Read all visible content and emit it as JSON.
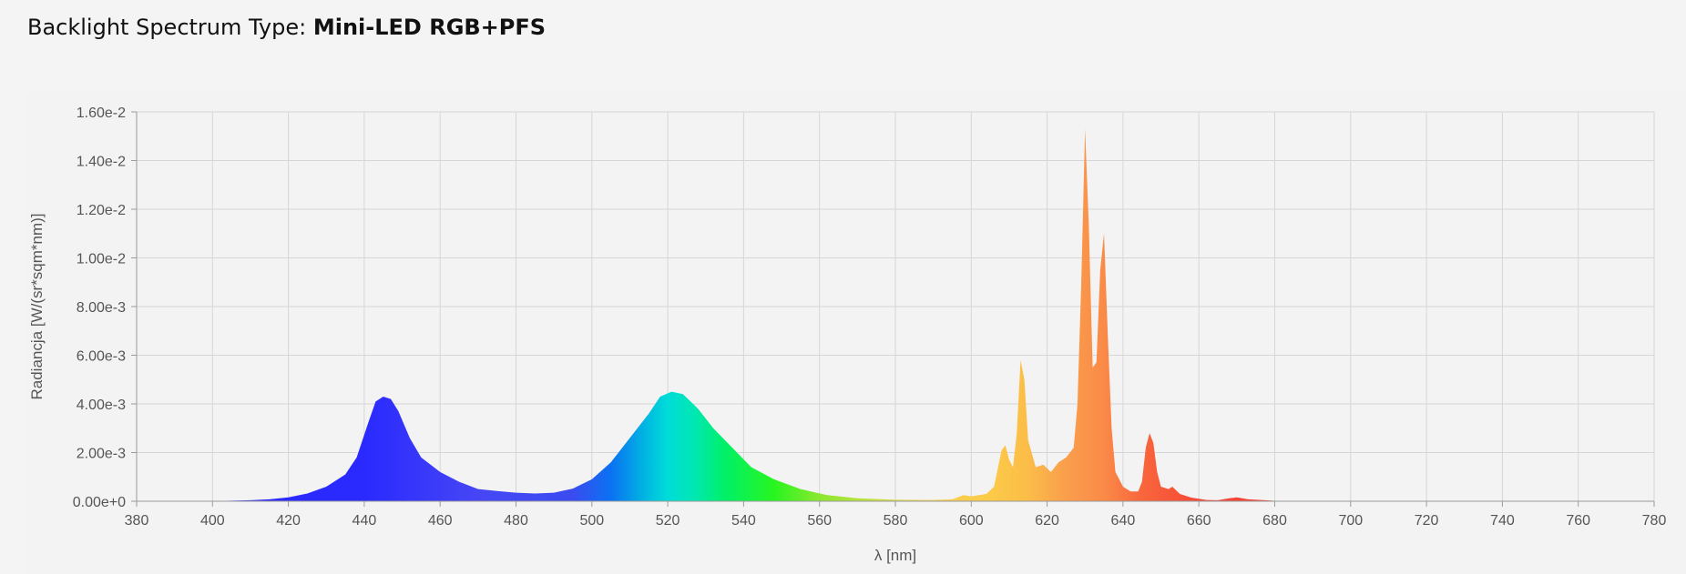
{
  "header": {
    "label": "Backlight Spectrum Type: ",
    "value": "Mini-LED RGB+PFS"
  },
  "chart_data": {
    "type": "area",
    "xlabel": "λ [nm]",
    "ylabel": "Radiancja [W/(sr*sqm*nm)]",
    "xlim": [
      380,
      780
    ],
    "ylim": [
      0,
      0.016
    ],
    "grid": true,
    "x_ticks": [
      "380",
      "400",
      "420",
      "440",
      "460",
      "480",
      "500",
      "520",
      "540",
      "560",
      "580",
      "600",
      "620",
      "640",
      "660",
      "680",
      "700",
      "720",
      "740",
      "760",
      "780"
    ],
    "y_ticks": [
      "0.00e+0",
      "2.00e-3",
      "4.00e-3",
      "6.00e-3",
      "8.00e-3",
      "1.00e-2",
      "1.20e-2",
      "1.40e-2",
      "1.60e-2"
    ],
    "fill": "wavelength-spectrum-gradient",
    "series": [
      {
        "points": [
          [
            380,
            0
          ],
          [
            400,
            1e-05
          ],
          [
            410,
            4e-05
          ],
          [
            415,
            8e-05
          ],
          [
            420,
            0.00016
          ],
          [
            425,
            0.00032
          ],
          [
            430,
            0.0006
          ],
          [
            435,
            0.0011
          ],
          [
            438,
            0.0018
          ],
          [
            441,
            0.0032
          ],
          [
            443,
            0.0041
          ],
          [
            445,
            0.0043
          ],
          [
            447,
            0.0042
          ],
          [
            449,
            0.0037
          ],
          [
            452,
            0.0026
          ],
          [
            455,
            0.0018
          ],
          [
            460,
            0.0012
          ],
          [
            465,
            0.0008
          ],
          [
            470,
            0.0005
          ],
          [
            475,
            0.00042
          ],
          [
            480,
            0.00035
          ],
          [
            485,
            0.00032
          ],
          [
            490,
            0.00035
          ],
          [
            495,
            0.00052
          ],
          [
            500,
            0.0009
          ],
          [
            505,
            0.0016
          ],
          [
            510,
            0.0026
          ],
          [
            515,
            0.0036
          ],
          [
            518,
            0.0043
          ],
          [
            521,
            0.0045
          ],
          [
            524,
            0.0044
          ],
          [
            528,
            0.0038
          ],
          [
            532,
            0.003
          ],
          [
            537,
            0.0022
          ],
          [
            542,
            0.0014
          ],
          [
            548,
            0.0009
          ],
          [
            555,
            0.0005
          ],
          [
            562,
            0.00025
          ],
          [
            570,
            0.00012
          ],
          [
            580,
            6e-05
          ],
          [
            590,
            5e-05
          ],
          [
            595,
            8e-05
          ],
          [
            598,
            0.00025
          ],
          [
            600,
            0.0002
          ],
          [
            604,
            0.0003
          ],
          [
            606,
            0.0006
          ],
          [
            608,
            0.0021
          ],
          [
            609,
            0.0023
          ],
          [
            610,
            0.0017
          ],
          [
            611,
            0.0014
          ],
          [
            612,
            0.0028
          ],
          [
            613,
            0.0058
          ],
          [
            614,
            0.005
          ],
          [
            615,
            0.0025
          ],
          [
            617,
            0.0014
          ],
          [
            619,
            0.0015
          ],
          [
            621,
            0.0012
          ],
          [
            623,
            0.0016
          ],
          [
            625,
            0.0018
          ],
          [
            627,
            0.0022
          ],
          [
            628,
            0.004
          ],
          [
            629,
            0.009
          ],
          [
            630,
            0.0153
          ],
          [
            631,
            0.0113
          ],
          [
            632,
            0.0055
          ],
          [
            633,
            0.0057
          ],
          [
            634,
            0.0095
          ],
          [
            635,
            0.011
          ],
          [
            636,
            0.0068
          ],
          [
            637,
            0.003
          ],
          [
            638,
            0.0012
          ],
          [
            640,
            0.0006
          ],
          [
            642,
            0.0004
          ],
          [
            644,
            0.0004
          ],
          [
            645,
            0.0008
          ],
          [
            646,
            0.0022
          ],
          [
            647,
            0.0028
          ],
          [
            648,
            0.0024
          ],
          [
            649,
            0.0012
          ],
          [
            650,
            0.0006
          ],
          [
            652,
            0.0005
          ],
          [
            653,
            0.0006
          ],
          [
            655,
            0.0003
          ],
          [
            658,
            0.00015
          ],
          [
            662,
            5e-05
          ],
          [
            665,
            4e-05
          ],
          [
            668,
            0.00012
          ],
          [
            670,
            0.00016
          ],
          [
            673,
            8e-05
          ],
          [
            680,
            2e-05
          ],
          [
            700,
            1e-05
          ],
          [
            720,
            5e-06
          ],
          [
            765,
            4e-06
          ],
          [
            780,
            0
          ]
        ]
      }
    ]
  }
}
